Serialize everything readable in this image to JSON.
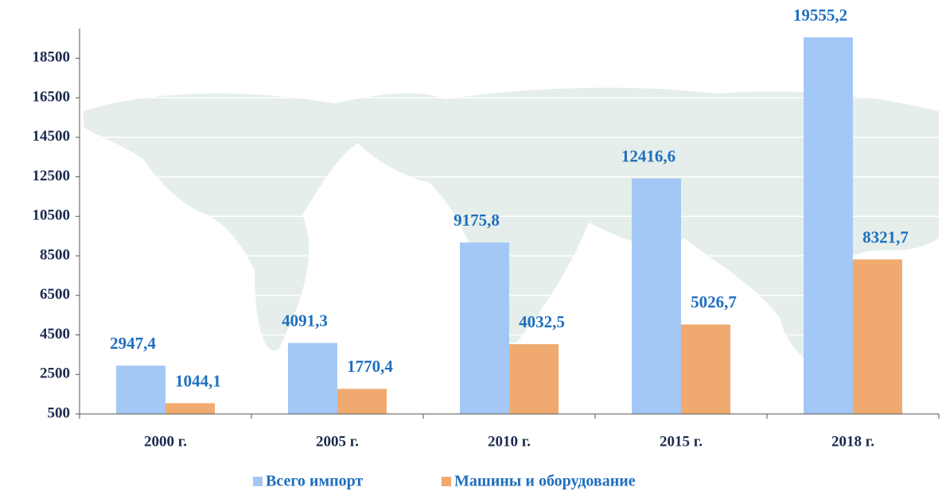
{
  "chart_data": {
    "type": "bar",
    "categories": [
      "2000 г.",
      "2005 г.",
      "2010 г.",
      "2015 г.",
      "2018 г."
    ],
    "series": [
      {
        "name": "Всего импорт",
        "color": "#a4c8f5",
        "values": [
          2947.4,
          4091.3,
          9175.8,
          12416.6,
          19555.2
        ],
        "value_labels": [
          "2947,4",
          "4091,3",
          "9175,8",
          "12416,6",
          "19555,2"
        ]
      },
      {
        "name": "Машины и оборудование",
        "color": "#f0aa70",
        "values": [
          1044.1,
          1770.4,
          4032.5,
          5026.7,
          8321.7
        ],
        "value_labels": [
          "1044,1",
          "1770,4",
          "4032,5",
          "5026,7",
          "8321,7"
        ]
      }
    ],
    "ylim": [
      500,
      20000
    ],
    "yticks": [
      500,
      2500,
      4500,
      6500,
      8500,
      10500,
      12500,
      14500,
      16500,
      18500
    ],
    "grid": true
  }
}
